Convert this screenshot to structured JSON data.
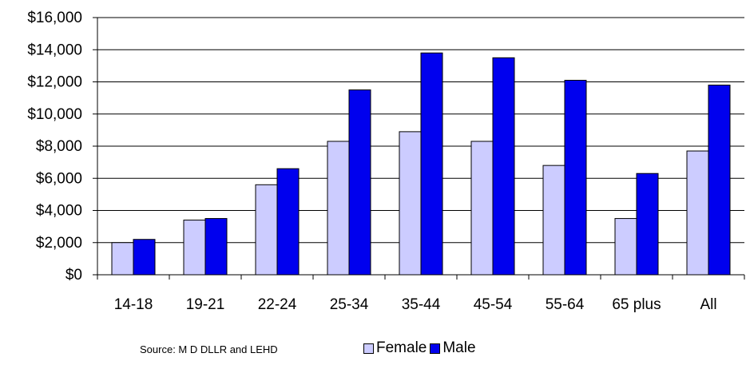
{
  "chart_data": {
    "type": "bar",
    "categories": [
      "14-18",
      "19-21",
      "22-24",
      "25-34",
      "35-44",
      "45-54",
      "55-64",
      "65 plus",
      "All"
    ],
    "series": [
      {
        "name": "Female",
        "color": "#ccccff",
        "values": [
          2000,
          3400,
          5600,
          8300,
          8900,
          8300,
          6800,
          3500,
          7700
        ]
      },
      {
        "name": "Male",
        "color": "#0000ee",
        "values": [
          2200,
          3500,
          6600,
          11500,
          13800,
          13500,
          12100,
          6300,
          11800
        ]
      }
    ],
    "ylim": [
      0,
      16000
    ],
    "yticks": [
      "$0",
      "$2,000",
      "$4,000",
      "$6,000",
      "$8,000",
      "$10,000",
      "$12,000",
      "$14,000",
      "$16,000"
    ],
    "grid": true,
    "legend_position": "bottom"
  },
  "source_note": "Source: M D DLLR and LEHD"
}
